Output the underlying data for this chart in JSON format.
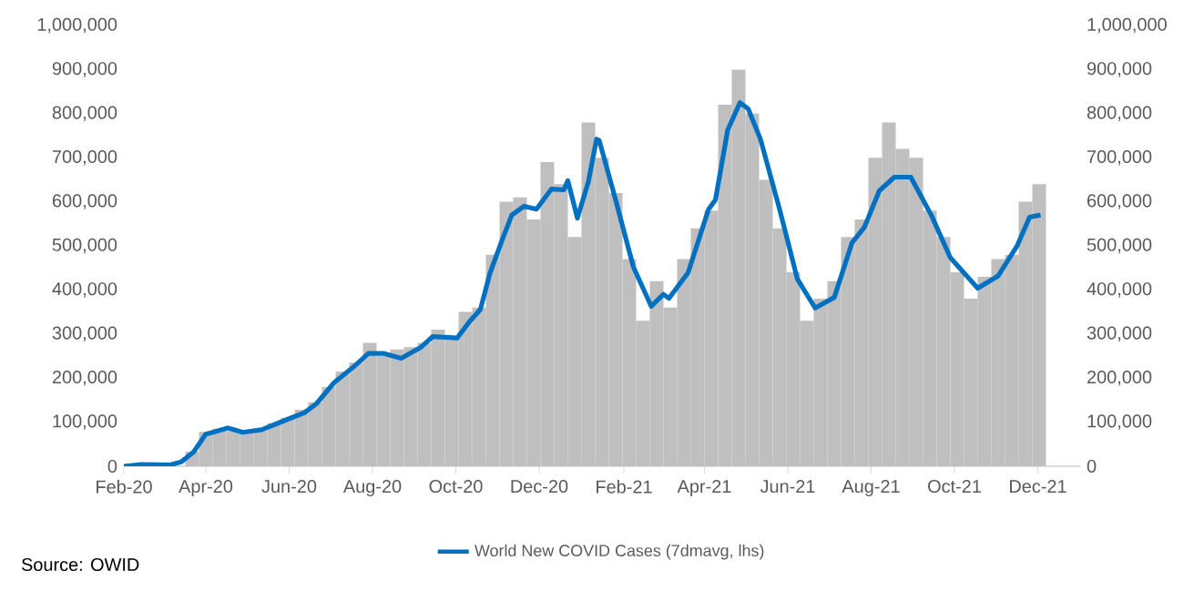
{
  "chart_data": {
    "type": "bar",
    "xlim": [
      "2020-02-01",
      "2022-01-01"
    ],
    "xticks": [
      {
        "value": "2020-02-01",
        "label": "Feb-20"
      },
      {
        "value": "2020-04-01",
        "label": "Apr-20"
      },
      {
        "value": "2020-06-01",
        "label": "Jun-20"
      },
      {
        "value": "2020-08-01",
        "label": "Aug-20"
      },
      {
        "value": "2020-10-01",
        "label": "Oct-20"
      },
      {
        "value": "2020-12-01",
        "label": "Dec-20"
      },
      {
        "value": "2021-02-01",
        "label": "Feb-21"
      },
      {
        "value": "2021-04-01",
        "label": "Apr-21"
      },
      {
        "value": "2021-06-01",
        "label": "Jun-21"
      },
      {
        "value": "2021-08-01",
        "label": "Aug-21"
      },
      {
        "value": "2021-10-01",
        "label": "Oct-21"
      },
      {
        "value": "2021-12-01",
        "label": "Dec-21"
      }
    ],
    "ylim": [
      0,
      1000000
    ],
    "yticks": [
      0,
      {
        "value": 100000,
        "label": "100,000"
      },
      {
        "value": 200000,
        "label": "200,000"
      },
      {
        "value": 300000,
        "label": "300,000"
      },
      {
        "value": 400000,
        "label": "400,000"
      },
      {
        "value": 500000,
        "label": "500,000"
      },
      {
        "value": 600000,
        "label": "600,000"
      },
      {
        "value": 700000,
        "label": "700,000"
      },
      {
        "value": 800000,
        "label": "800,000"
      },
      {
        "value": 900000,
        "label": "900,000"
      },
      {
        "value": 1000000,
        "label": "1,000,000"
      }
    ],
    "y2lim": [
      0,
      1000000
    ],
    "y2ticks": [
      0,
      {
        "value": 100000,
        "label": "100,000"
      },
      {
        "value": 200000,
        "label": "200,000"
      },
      {
        "value": 300000,
        "label": "300,000"
      },
      {
        "value": 400000,
        "label": "400,000"
      },
      {
        "value": 500000,
        "label": "500,000"
      },
      {
        "value": 600000,
        "label": "600,000"
      },
      {
        "value": 700000,
        "label": "700,000"
      },
      {
        "value": 800000,
        "label": "800,000"
      },
      {
        "value": 900000,
        "label": "900,000"
      },
      {
        "value": 1000000,
        "label": "1,000,000"
      }
    ],
    "grid": false,
    "legend": "bottom",
    "annotations": [
      "Source: OWID"
    ],
    "series": [
      {
        "color": "#bfbfbf",
        "x": [
          "2020-02-01",
          "2020-02-11",
          "2020-02-21",
          "2020-03-02",
          "2020-03-12",
          "2020-03-22",
          "2020-04-01",
          "2020-04-11",
          "2020-04-21",
          "2020-05-01",
          "2020-05-11",
          "2020-05-21",
          "2020-05-31",
          "2020-06-10",
          "2020-06-20",
          "2020-06-30",
          "2020-07-10",
          "2020-07-20",
          "2020-07-30",
          "2020-08-09",
          "2020-08-19",
          "2020-08-29",
          "2020-09-08",
          "2020-09-18",
          "2020-09-28",
          "2020-10-08",
          "2020-10-18",
          "2020-10-28",
          "2020-11-07",
          "2020-11-17",
          "2020-11-27",
          "2020-12-07",
          "2020-12-17",
          "2020-12-27",
          "2021-01-06",
          "2021-01-16",
          "2021-01-26",
          "2021-02-05",
          "2021-02-15",
          "2021-02-25",
          "2021-03-07",
          "2021-03-17",
          "2021-03-27",
          "2021-04-06",
          "2021-04-16",
          "2021-04-26",
          "2021-05-06",
          "2021-05-16",
          "2021-05-26",
          "2021-06-05",
          "2021-06-15",
          "2021-06-25",
          "2021-07-05",
          "2021-07-15",
          "2021-07-25",
          "2021-08-04",
          "2021-08-14",
          "2021-08-24",
          "2021-09-03",
          "2021-09-13",
          "2021-09-23",
          "2021-10-03",
          "2021-10-13",
          "2021-10-23",
          "2021-11-02",
          "2021-11-12",
          "2021-11-22",
          "2021-12-02"
        ],
        "values": [
          2000,
          4000,
          2000,
          2000,
          null,
          33000,
          78000,
          85000,
          80000,
          82000,
          80000,
          98000,
          110000,
          128000,
          145000,
          180000,
          215000,
          235000,
          280000,
          250000,
          265000,
          270000,
          280000,
          310000,
          290000,
          350000,
          360000,
          480000,
          600000,
          610000,
          560000,
          690000,
          640000,
          520000,
          780000,
          700000,
          620000,
          470000,
          330000,
          420000,
          360000,
          470000,
          540000,
          580000,
          820000,
          900000,
          800000,
          650000,
          540000,
          440000,
          330000,
          380000,
          420000,
          520000,
          560000,
          700000,
          780000,
          720000,
          700000,
          580000,
          520000,
          440000,
          380000,
          430000,
          470000,
          480000,
          600000,
          640000
        ]
      },
      {
        "type": "line",
        "name": "World New COVID Cases (7dmavg, lhs)",
        "color": "#0070c0",
        "x": [
          "2020-02-01",
          "2020-02-14",
          "2020-03-06",
          "2020-03-14",
          "2020-03-23",
          "2020-04-01",
          "2020-04-06",
          "2020-04-17",
          "2020-04-28",
          "2020-05-12",
          "2020-06-01",
          "2020-06-12",
          "2020-06-21",
          "2020-07-04",
          "2020-07-18",
          "2020-07-29",
          "2020-08-09",
          "2020-08-22",
          "2020-09-05",
          "2020-09-14",
          "2020-10-02",
          "2020-10-11",
          "2020-10-19",
          "2020-10-26",
          "2020-11-04",
          "2020-11-11",
          "2020-11-20",
          "2020-11-29",
          "2020-12-10",
          "2020-12-19",
          "2020-12-22",
          "2020-12-29",
          "2021-01-06",
          "2021-01-12",
          "2021-01-14",
          "2021-01-26",
          "2021-02-08",
          "2021-02-21",
          "2021-03-02",
          "2021-03-06",
          "2021-03-20",
          "2021-04-04",
          "2021-04-09",
          "2021-04-18",
          "2021-04-27",
          "2021-05-03",
          "2021-05-12",
          "2021-05-26",
          "2021-06-08",
          "2021-06-21",
          "2021-07-05",
          "2021-07-18",
          "2021-07-27",
          "2021-08-07",
          "2021-08-18",
          "2021-08-30",
          "2021-09-14",
          "2021-09-28",
          "2021-10-18",
          "2021-11-02",
          "2021-11-16",
          "2021-11-25",
          "2021-12-03"
        ],
        "values": [
          0,
          4000,
          3000,
          10000,
          32000,
          73000,
          77000,
          87000,
          77000,
          83000,
          108000,
          121000,
          142000,
          190000,
          225000,
          256000,
          256000,
          245000,
          269000,
          294000,
          291000,
          328000,
          356000,
          438000,
          514000,
          570000,
          590000,
          583000,
          629000,
          627000,
          648000,
          563000,
          645000,
          742000,
          739000,
          604000,
          452000,
          363000,
          390000,
          381000,
          439000,
          583000,
          604000,
          763000,
          825000,
          811000,
          742000,
          583000,
          425000,
          359000,
          383000,
          507000,
          542000,
          625000,
          656000,
          656000,
          570000,
          473000,
          404000,
          432000,
          501000,
          565000,
          570000
        ]
      }
    ]
  }
}
